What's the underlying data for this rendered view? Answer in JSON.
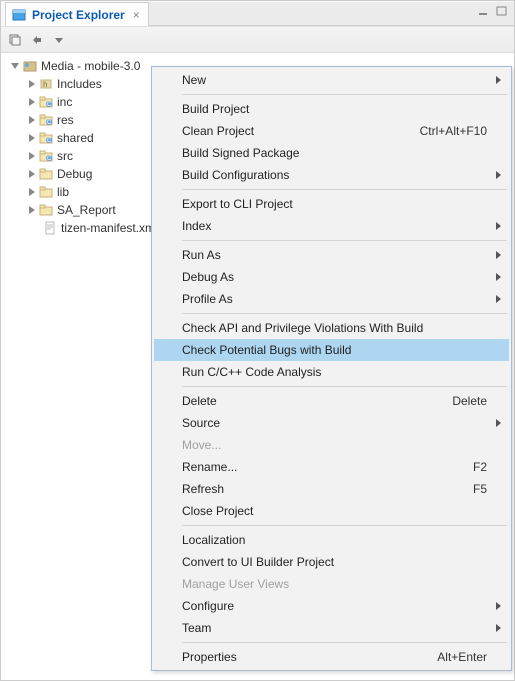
{
  "tab": {
    "title": "Project Explorer"
  },
  "tree": {
    "root": {
      "label": "Media - mobile-3.0"
    },
    "children": [
      {
        "label": "Includes",
        "icon": "includes"
      },
      {
        "label": "inc",
        "icon": "cfolder"
      },
      {
        "label": "res",
        "icon": "cfolder"
      },
      {
        "label": "shared",
        "icon": "cfolder"
      },
      {
        "label": "src",
        "icon": "cfolder"
      },
      {
        "label": "Debug",
        "icon": "folder"
      },
      {
        "label": "lib",
        "icon": "folder"
      },
      {
        "label": "SA_Report",
        "icon": "folder"
      },
      {
        "label": "tizen-manifest.xml",
        "icon": "file"
      }
    ]
  },
  "menu": {
    "items": [
      {
        "label": "New",
        "submenu": true
      },
      {
        "sep": true
      },
      {
        "label": "Build Project"
      },
      {
        "label": "Clean Project",
        "shortcut": "Ctrl+Alt+F10"
      },
      {
        "label": "Build Signed Package"
      },
      {
        "label": "Build Configurations",
        "submenu": true
      },
      {
        "sep": true
      },
      {
        "label": "Export to CLI Project"
      },
      {
        "label": "Index",
        "submenu": true
      },
      {
        "sep": true
      },
      {
        "label": "Run As",
        "submenu": true
      },
      {
        "label": "Debug As",
        "submenu": true
      },
      {
        "label": "Profile As",
        "submenu": true
      },
      {
        "sep": true
      },
      {
        "label": "Check API and Privilege Violations With Build"
      },
      {
        "label": "Check Potential Bugs with Build",
        "highlight": true
      },
      {
        "label": "Run C/C++ Code Analysis"
      },
      {
        "sep": true
      },
      {
        "label": "Delete",
        "shortcut": "Delete"
      },
      {
        "label": "Source",
        "submenu": true
      },
      {
        "label": "Move...",
        "disabled": true
      },
      {
        "label": "Rename...",
        "shortcut": "F2"
      },
      {
        "label": "Refresh",
        "shortcut": "F5"
      },
      {
        "label": "Close Project"
      },
      {
        "sep": true
      },
      {
        "label": "Localization"
      },
      {
        "label": "Convert to UI Builder Project"
      },
      {
        "label": "Manage User Views",
        "disabled": true
      },
      {
        "label": "Configure",
        "submenu": true
      },
      {
        "label": "Team",
        "submenu": true
      },
      {
        "sep": true
      },
      {
        "label": "Properties",
        "shortcut": "Alt+Enter"
      }
    ]
  }
}
